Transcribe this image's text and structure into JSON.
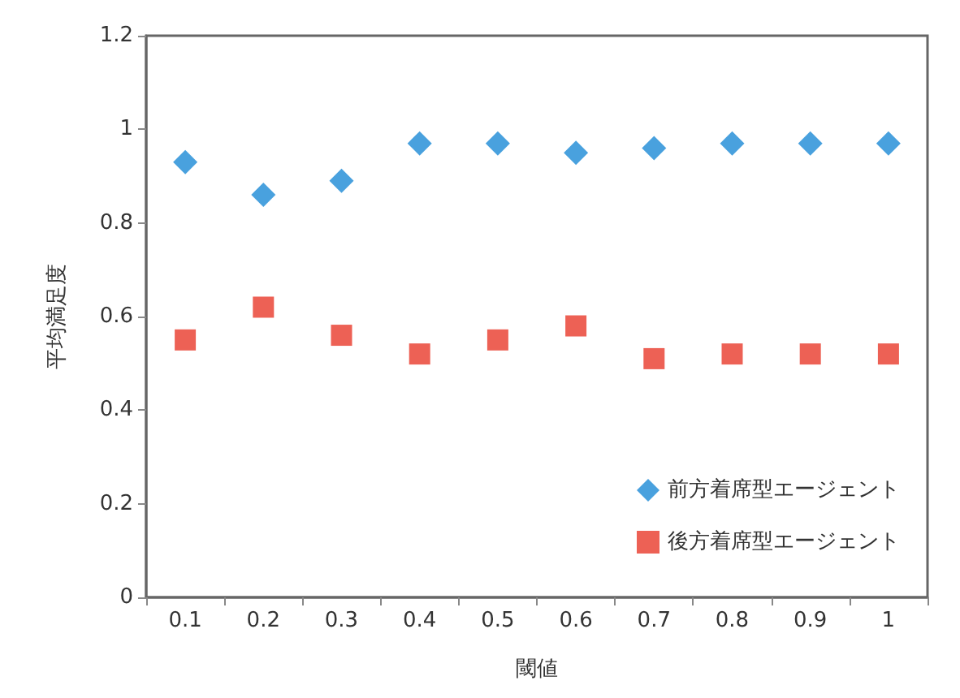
{
  "chart_data": {
    "type": "scatter",
    "xlabel": "閾値",
    "ylabel": "平均満足度",
    "categories": [
      "0.1",
      "0.2",
      "0.3",
      "0.4",
      "0.5",
      "0.6",
      "0.7",
      "0.8",
      "0.9",
      "1"
    ],
    "series": [
      {
        "name": "前方着席型エージェント",
        "color": "#1b8ad6",
        "marker": "diamond",
        "values": [
          0.93,
          0.86,
          0.89,
          0.97,
          0.97,
          0.95,
          0.96,
          0.97,
          0.97,
          0.97
        ]
      },
      {
        "name": "後方着席型エージェント",
        "color": "#e8392a",
        "marker": "square",
        "values": [
          0.55,
          0.62,
          0.56,
          0.52,
          0.55,
          0.58,
          0.51,
          0.52,
          0.52,
          0.52
        ]
      }
    ],
    "ylim": [
      0,
      1.2
    ],
    "yticks": [
      0,
      0.2,
      0.4,
      0.6,
      0.8,
      1,
      1.2
    ],
    "grid": false,
    "legend": "bottom right"
  }
}
